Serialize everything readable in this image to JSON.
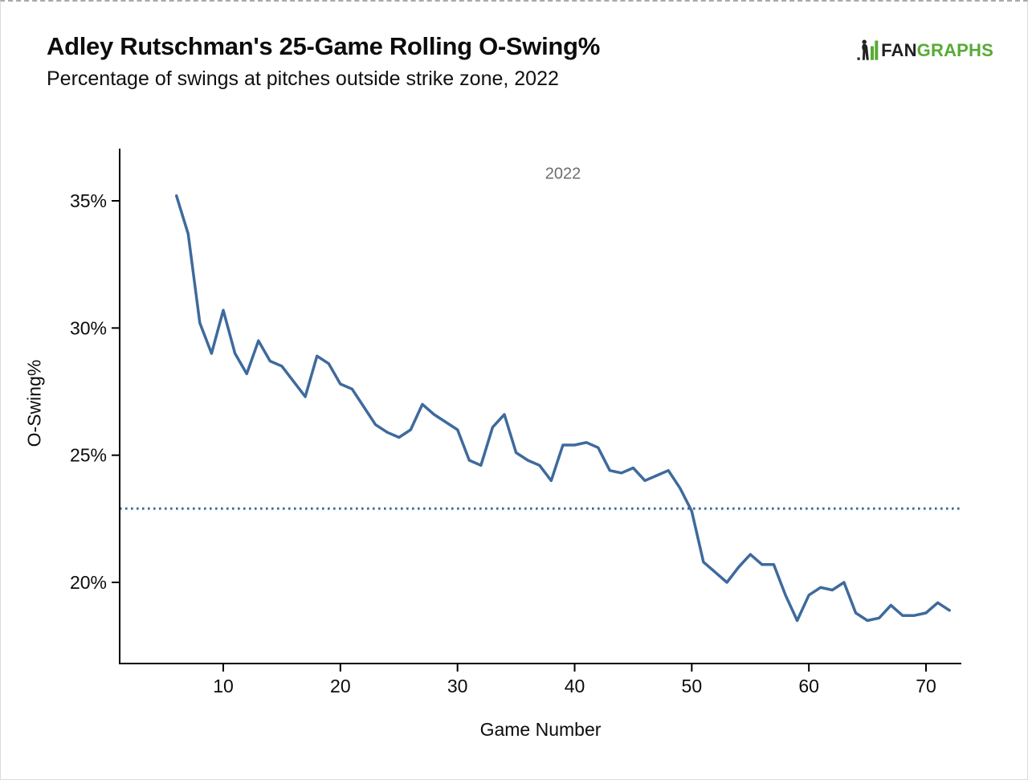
{
  "header": {
    "title": "Adley Rutschman's 25-Game Rolling O-Swing%",
    "subtitle": "Percentage of swings at pitches outside strike zone, 2022"
  },
  "logo": {
    "fan": "FAN",
    "graphs": "GRAPHS",
    "fan_color": "#1f1f1f",
    "graphs_color": "#57ab35"
  },
  "chart_data": {
    "type": "line",
    "title": "Adley Rutschman's 25-Game Rolling O-Swing%",
    "subtitle": "Percentage of swings at pitches outside strike zone, 2022",
    "xlabel": "Game Number",
    "ylabel": "O-Swing%",
    "annotation": "2022",
    "annotation_color": "#6e6e6e",
    "line_color": "#3e6a9d",
    "axis_color": "#000000",
    "grid": false,
    "legend": null,
    "xlim": [
      1,
      73
    ],
    "ylim": [
      16.8,
      37.1
    ],
    "x_ticks": [
      10,
      20,
      30,
      40,
      50,
      60,
      70
    ],
    "y_ticks": [
      20,
      25,
      30,
      35
    ],
    "y_tick_labels": [
      "20%",
      "25%",
      "30%",
      "35%"
    ],
    "average_line": {
      "value": 22.9,
      "style": "dotted"
    },
    "x": [
      6,
      7,
      8,
      9,
      10,
      11,
      12,
      13,
      14,
      15,
      16,
      17,
      18,
      19,
      20,
      21,
      22,
      23,
      24,
      25,
      26,
      27,
      28,
      29,
      30,
      31,
      32,
      33,
      34,
      35,
      36,
      37,
      38,
      39,
      40,
      41,
      42,
      43,
      44,
      45,
      46,
      47,
      48,
      49,
      50,
      51,
      52,
      53,
      54,
      55,
      56,
      57,
      58,
      59,
      60,
      61,
      62,
      63,
      64,
      65,
      66,
      67,
      68,
      69,
      70,
      71,
      72
    ],
    "y": [
      35.2,
      33.7,
      30.2,
      29.0,
      30.7,
      29.0,
      28.2,
      29.5,
      28.7,
      28.5,
      27.9,
      27.3,
      28.9,
      28.6,
      27.8,
      27.6,
      26.9,
      26.2,
      25.9,
      25.7,
      26.0,
      27.0,
      26.6,
      26.3,
      26.0,
      24.8,
      24.6,
      26.1,
      26.6,
      25.1,
      24.8,
      24.6,
      24.0,
      25.4,
      25.4,
      25.5,
      25.3,
      24.4,
      24.3,
      24.5,
      24.0,
      24.2,
      24.4,
      23.7,
      22.8,
      20.8,
      20.4,
      20.0,
      20.6,
      21.1,
      20.7,
      20.7,
      19.5,
      18.5,
      19.5,
      19.8,
      19.7,
      20.0,
      18.8,
      18.5,
      18.6,
      19.1,
      18.7,
      18.7,
      18.8,
      19.2,
      18.9
    ]
  }
}
